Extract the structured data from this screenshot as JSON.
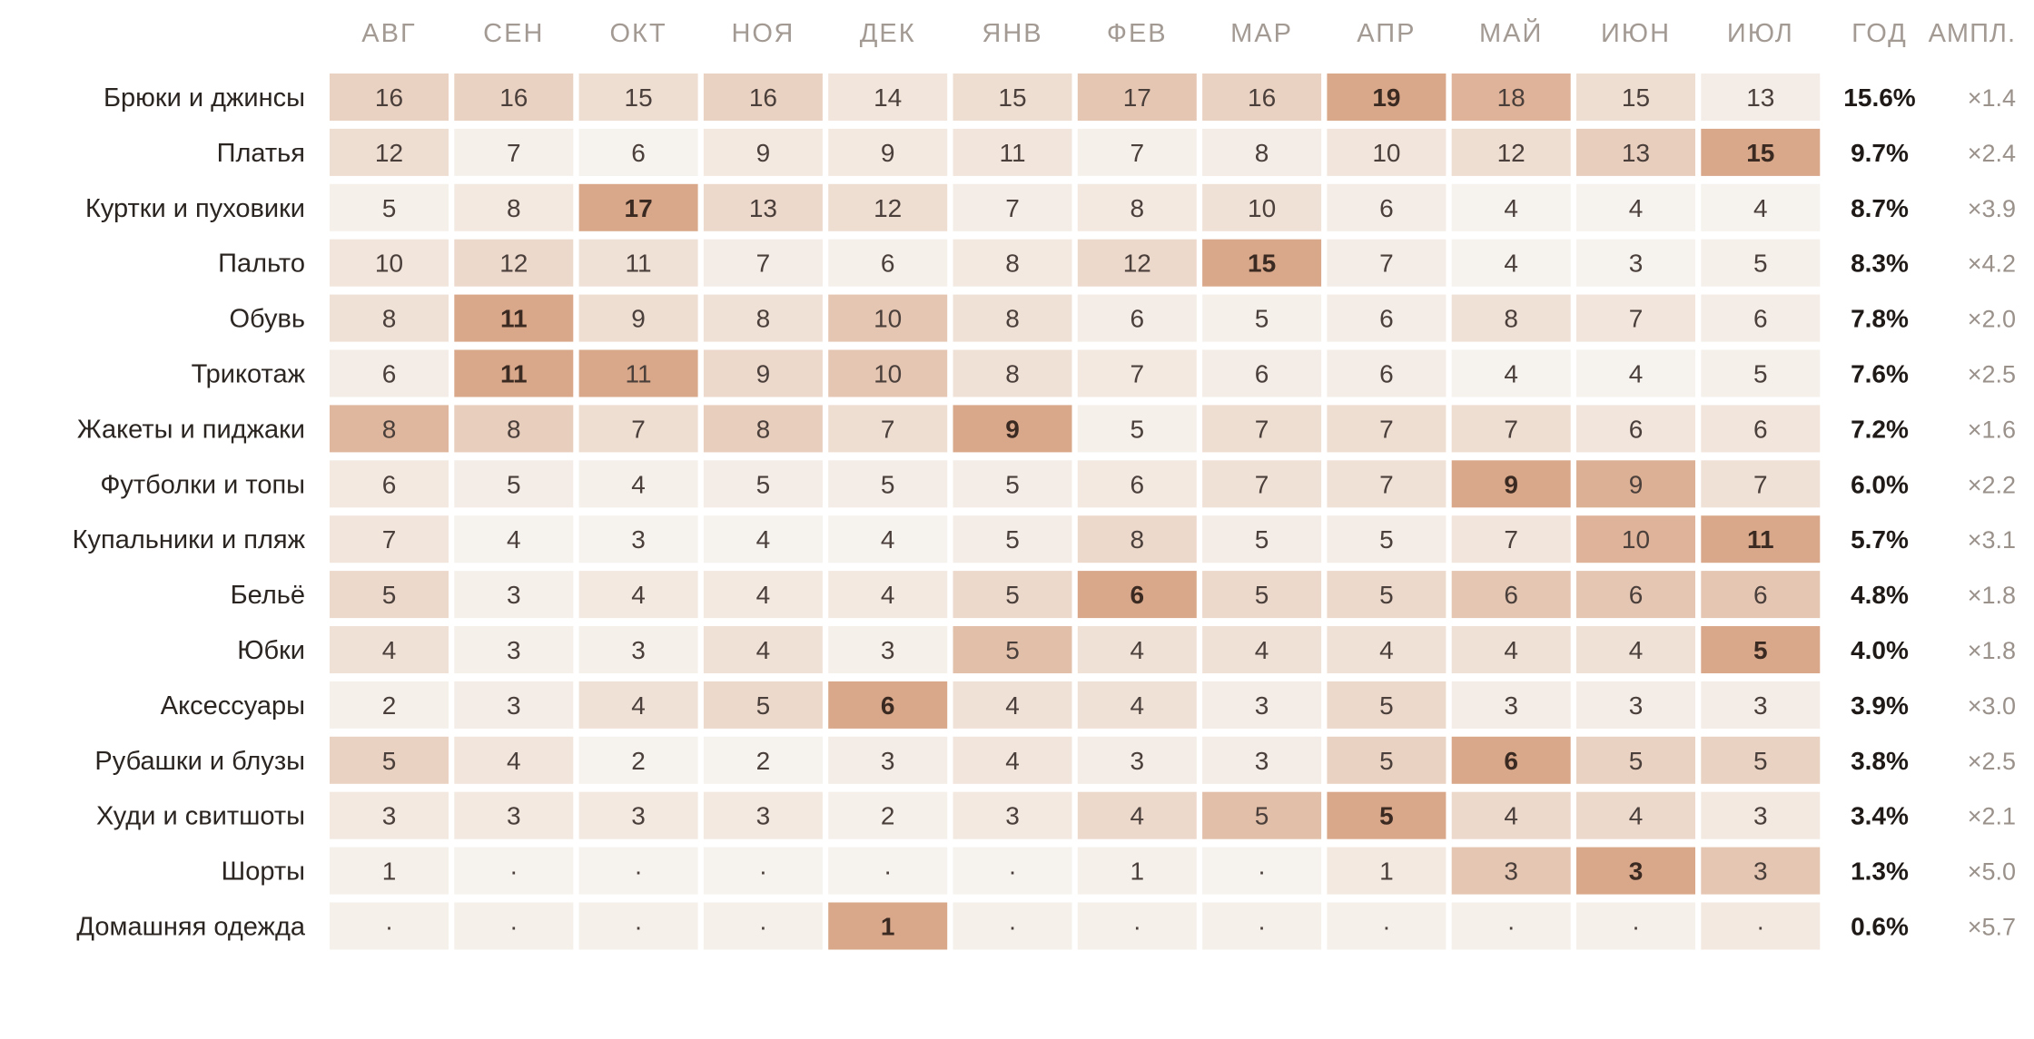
{
  "chart_data": {
    "type": "heatmap",
    "columns": [
      "АВГ",
      "СЕН",
      "ОКТ",
      "НОЯ",
      "ДЕК",
      "ЯНВ",
      "ФЕВ",
      "МАР",
      "АПР",
      "МАЙ",
      "ИЮН",
      "ИЮЛ"
    ],
    "year_header": "ГОД",
    "amp_header": "АМПЛ.",
    "empty_symbol": "·",
    "colors": {
      "low": "#f7f4f0",
      "high": "#d9a88a",
      "peak_text": "#3a2a22"
    },
    "rows": [
      {
        "label": "Брюки и джинсы",
        "values": [
          16,
          16,
          15,
          16,
          14,
          15,
          17,
          16,
          19,
          18,
          15,
          13
        ],
        "year": "15.6%",
        "amp": "×1.4"
      },
      {
        "label": "Платья",
        "values": [
          12,
          7,
          6,
          9,
          9,
          11,
          7,
          8,
          10,
          12,
          13,
          15
        ],
        "year": "9.7%",
        "amp": "×2.4"
      },
      {
        "label": "Куртки и пуховики",
        "values": [
          5,
          8,
          17,
          13,
          12,
          7,
          8,
          10,
          6,
          4,
          4,
          4
        ],
        "year": "8.7%",
        "amp": "×3.9"
      },
      {
        "label": "Пальто",
        "values": [
          10,
          12,
          11,
          7,
          6,
          8,
          12,
          15,
          7,
          4,
          3,
          5
        ],
        "year": "8.3%",
        "amp": "×4.2"
      },
      {
        "label": "Обувь",
        "values": [
          8,
          11,
          9,
          8,
          10,
          8,
          6,
          5,
          6,
          8,
          7,
          6
        ],
        "year": "7.8%",
        "amp": "×2.0"
      },
      {
        "label": "Трикотаж",
        "values": [
          6,
          11,
          11,
          9,
          10,
          8,
          7,
          6,
          6,
          4,
          4,
          5
        ],
        "year": "7.6%",
        "amp": "×2.5"
      },
      {
        "label": "Жакеты и пиджаки",
        "values": [
          8,
          8,
          7,
          8,
          7,
          9,
          5,
          7,
          7,
          7,
          6,
          6
        ],
        "year": "7.2%",
        "amp": "×1.6"
      },
      {
        "label": "Футболки и топы",
        "values": [
          6,
          5,
          4,
          5,
          5,
          5,
          6,
          7,
          7,
          9,
          9,
          7
        ],
        "year": "6.0%",
        "amp": "×2.2"
      },
      {
        "label": "Купальники и пляж",
        "values": [
          7,
          4,
          3,
          4,
          4,
          5,
          8,
          5,
          5,
          7,
          10,
          11
        ],
        "year": "5.7%",
        "amp": "×3.1"
      },
      {
        "label": "Бельё",
        "values": [
          5,
          3,
          4,
          4,
          4,
          5,
          6,
          5,
          5,
          6,
          6,
          6
        ],
        "year": "4.8%",
        "amp": "×1.8"
      },
      {
        "label": "Юбки",
        "values": [
          4,
          3,
          3,
          4,
          3,
          5,
          4,
          4,
          4,
          4,
          4,
          5
        ],
        "year": "4.0%",
        "amp": "×1.8"
      },
      {
        "label": "Аксессуары",
        "values": [
          2,
          3,
          4,
          5,
          6,
          4,
          4,
          3,
          5,
          3,
          3,
          3
        ],
        "year": "3.9%",
        "amp": "×3.0"
      },
      {
        "label": "Рубашки и блузы",
        "values": [
          5,
          4,
          2,
          2,
          3,
          4,
          3,
          3,
          5,
          6,
          5,
          5
        ],
        "year": "3.8%",
        "amp": "×2.5"
      },
      {
        "label": "Худи и свитшоты",
        "values": [
          3,
          3,
          3,
          3,
          2,
          3,
          4,
          5,
          5,
          4,
          4,
          3
        ],
        "year": "3.4%",
        "amp": "×2.1"
      },
      {
        "label": "Шорты",
        "values": [
          1,
          null,
          null,
          null,
          null,
          null,
          1,
          null,
          1,
          3,
          3,
          3
        ],
        "year": "1.3%",
        "amp": "×5.0"
      },
      {
        "label": "Домашняя одежда",
        "values": [
          null,
          null,
          null,
          null,
          1,
          null,
          null,
          null,
          null,
          null,
          null,
          null
        ],
        "year": "0.6%",
        "amp": "×5.7"
      }
    ],
    "intensity": [
      [
        0.45,
        0.45,
        0.3,
        0.45,
        0.2,
        0.3,
        0.6,
        0.45,
        1.0,
        0.85,
        0.3,
        0.1
      ],
      [
        0.3,
        0.05,
        0.03,
        0.15,
        0.15,
        0.2,
        0.05,
        0.1,
        0.2,
        0.3,
        0.5,
        1.0
      ],
      [
        0.05,
        0.15,
        1.0,
        0.35,
        0.3,
        0.1,
        0.15,
        0.25,
        0.1,
        0.03,
        0.03,
        0.03
      ],
      [
        0.2,
        0.35,
        0.25,
        0.1,
        0.05,
        0.15,
        0.35,
        1.0,
        0.1,
        0.03,
        0.03,
        0.05
      ],
      [
        0.25,
        1.0,
        0.3,
        0.25,
        0.6,
        0.25,
        0.1,
        0.05,
        0.1,
        0.25,
        0.2,
        0.1
      ],
      [
        0.1,
        1.0,
        1.0,
        0.35,
        0.6,
        0.25,
        0.15,
        0.1,
        0.1,
        0.03,
        0.03,
        0.05
      ],
      [
        0.8,
        0.5,
        0.3,
        0.5,
        0.3,
        1.0,
        0.05,
        0.3,
        0.3,
        0.3,
        0.2,
        0.2
      ],
      [
        0.15,
        0.1,
        0.05,
        0.1,
        0.1,
        0.1,
        0.15,
        0.25,
        0.25,
        1.0,
        0.9,
        0.25
      ],
      [
        0.2,
        0.03,
        0.03,
        0.03,
        0.03,
        0.1,
        0.35,
        0.1,
        0.1,
        0.2,
        0.85,
        1.0
      ],
      [
        0.35,
        0.05,
        0.15,
        0.15,
        0.15,
        0.35,
        1.0,
        0.35,
        0.35,
        0.6,
        0.6,
        0.6
      ],
      [
        0.25,
        0.05,
        0.05,
        0.25,
        0.05,
        0.7,
        0.25,
        0.25,
        0.25,
        0.25,
        0.25,
        1.0
      ],
      [
        0.05,
        0.1,
        0.25,
        0.35,
        1.0,
        0.25,
        0.25,
        0.1,
        0.35,
        0.1,
        0.1,
        0.1
      ],
      [
        0.45,
        0.2,
        0.03,
        0.03,
        0.1,
        0.2,
        0.1,
        0.1,
        0.45,
        1.0,
        0.45,
        0.45
      ],
      [
        0.15,
        0.15,
        0.15,
        0.15,
        0.05,
        0.15,
        0.35,
        0.7,
        1.0,
        0.35,
        0.35,
        0.15
      ],
      [
        0.05,
        0.02,
        0.02,
        0.02,
        0.02,
        0.02,
        0.05,
        0.02,
        0.15,
        0.6,
        1.0,
        0.6
      ],
      [
        0.05,
        0.05,
        0.05,
        0.05,
        1.0,
        0.05,
        0.05,
        0.05,
        0.05,
        0.05,
        0.05,
        0.15
      ]
    ]
  }
}
